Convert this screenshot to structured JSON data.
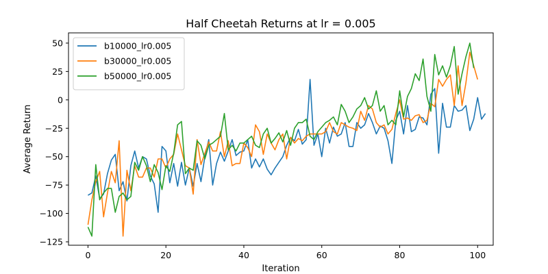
{
  "chart_data": {
    "type": "line",
    "title": "Half Cheetah Returns at lr = 0.005",
    "xlabel": "Iteration",
    "ylabel": "Average Return",
    "xlim": [
      -5,
      104
    ],
    "ylim": [
      -128,
      59
    ],
    "xticks": [
      0,
      20,
      40,
      60,
      80,
      100
    ],
    "yticks": [
      -125,
      -100,
      -75,
      -50,
      -25,
      0,
      25,
      50
    ],
    "grid": false,
    "legend_position": "upper-left",
    "series": [
      {
        "name": "b10000_lr0.005",
        "color": "#1f77b4",
        "values": [
          -84,
          -82,
          -67,
          -87,
          -83,
          -65,
          -53,
          -48,
          -80,
          -72,
          -89,
          -58,
          -45,
          -60,
          -50,
          -52,
          -67,
          -74,
          -99,
          -41,
          -45,
          -73,
          -56,
          -76,
          -55,
          -75,
          -60,
          -76,
          -56,
          -72,
          -50,
          -35,
          -75,
          -56,
          -46,
          -54,
          -45,
          -35,
          -49,
          -46,
          -45,
          -35,
          -60,
          -52,
          -59,
          -52,
          -61,
          -66,
          -60,
          -55,
          -50,
          -40,
          -33,
          -36,
          -26,
          -39,
          -35,
          18,
          -40,
          -30,
          -50,
          -25,
          -38,
          -24,
          -32,
          -30,
          -20,
          -41,
          -41,
          -20,
          -25,
          -22,
          -12,
          -20,
          -30,
          -23,
          -25,
          -36,
          -56,
          -18,
          -10,
          -30,
          -5,
          -28,
          -26,
          -15,
          -16,
          -22,
          5,
          10,
          -47,
          -3,
          -24,
          -24,
          -5,
          -10,
          -9,
          -5,
          -27,
          -17,
          2,
          -17,
          -12
        ]
      },
      {
        "name": "b30000_lr0.005",
        "color": "#ff7f0e",
        "values": [
          -110,
          -88,
          -72,
          -63,
          -103,
          -82,
          -63,
          -73,
          -36,
          -120,
          -62,
          -80,
          -58,
          -68,
          -68,
          -60,
          -60,
          -68,
          -52,
          -52,
          -60,
          -52,
          -48,
          -30,
          -44,
          -58,
          -60,
          -83,
          -35,
          -57,
          -47,
          -37,
          -45,
          -45,
          -28,
          -50,
          -36,
          -58,
          -56,
          -56,
          -38,
          -42,
          -50,
          -22,
          -28,
          -48,
          -30,
          -38,
          -44,
          -35,
          -30,
          -52,
          -33,
          -38,
          -34,
          -36,
          -32,
          -30,
          -30,
          -30,
          -30,
          -28,
          -20,
          -28,
          -30,
          -20,
          -22,
          -24,
          -25,
          -27,
          -10,
          -18,
          -5,
          -8,
          -20,
          -24,
          -22,
          -30,
          -26,
          -12,
          0,
          -17,
          -16,
          -18,
          -14,
          -13,
          -20,
          -18,
          -3,
          -6,
          18,
          12,
          18,
          22,
          -5,
          30,
          -5,
          15,
          42,
          30,
          18
        ]
      },
      {
        "name": "b50000_lr0.005",
        "color": "#2ca02c",
        "values": [
          -112,
          -120,
          -57,
          -88,
          -82,
          -78,
          -78,
          -99,
          -85,
          -82,
          -88,
          -85,
          -55,
          -62,
          -50,
          -58,
          -72,
          -57,
          -64,
          -79,
          -58,
          -63,
          -47,
          -22,
          -19,
          -65,
          -60,
          -62,
          -36,
          -40,
          -52,
          -40,
          -38,
          -35,
          -32,
          -12,
          -44,
          -40,
          -45,
          -38,
          -38,
          -35,
          -32,
          -40,
          -42,
          -30,
          -25,
          -38,
          -34,
          -29,
          -37,
          -27,
          -40,
          -25,
          -20,
          -20,
          -17,
          -32,
          -35,
          -28,
          -24,
          -20,
          -18,
          -15,
          -22,
          -4,
          -10,
          -20,
          -15,
          -8,
          -5,
          2,
          -8,
          -5,
          8,
          -10,
          -5,
          -22,
          -18,
          -22,
          8,
          -15,
          3,
          10,
          23,
          17,
          36,
          3,
          -10,
          40,
          22,
          30,
          20,
          30,
          47,
          5,
          23,
          38,
          50,
          28
        ]
      }
    ]
  }
}
